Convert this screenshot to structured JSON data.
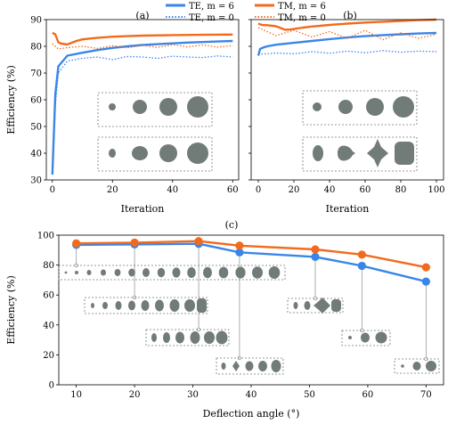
{
  "legend": [
    {
      "label": "TE, m = 6",
      "color": "#3a86e8",
      "style": "solid"
    },
    {
      "label": "TE, m = 0",
      "color": "#3a86e8",
      "style": "dotted"
    },
    {
      "label": "TM, m = 6",
      "color": "#f26b1d",
      "style": "solid"
    },
    {
      "label": "TM, m = 0",
      "color": "#f26b1d",
      "style": "dotted"
    }
  ],
  "colors": {
    "te": "#3a86e8",
    "tm": "#f26b1d",
    "shape": "#717c78"
  },
  "chart_data": [
    {
      "panel": "(a)",
      "type": "line",
      "xlabel": "Iteration",
      "ylabel": "Efficiency (%)",
      "xlim": [
        -2,
        62
      ],
      "ylim": [
        30,
        90
      ],
      "xticks": [
        0,
        20,
        40,
        60
      ],
      "yticks": [
        30,
        40,
        50,
        60,
        70,
        80,
        90
      ],
      "series": [
        {
          "name": "TE, m = 6",
          "x": [
            0,
            1,
            2,
            5,
            10,
            15,
            20,
            25,
            30,
            35,
            40,
            45,
            50,
            55,
            60
          ],
          "values": [
            32,
            62,
            72.5,
            76.5,
            77.6,
            78.6,
            79.4,
            80.0,
            80.5,
            80.8,
            81.1,
            81.4,
            81.6,
            81.8,
            82.0
          ]
        },
        {
          "name": "TE, m = 0",
          "x": [
            0,
            1,
            2,
            5,
            10,
            15,
            20,
            25,
            30,
            35,
            40,
            45,
            50,
            55,
            60
          ],
          "values": [
            33,
            58,
            70,
            74.5,
            75.5,
            76,
            75,
            76.2,
            76,
            75.5,
            76.3,
            76,
            75.8,
            76.4,
            76
          ]
        },
        {
          "name": "TM, m = 6",
          "x": [
            0,
            1,
            2,
            3,
            5,
            8,
            10,
            15,
            20,
            25,
            30,
            40,
            50,
            60
          ],
          "values": [
            85,
            84.5,
            81.5,
            81,
            80.7,
            82,
            82.6,
            83.2,
            83.6,
            83.8,
            84.0,
            84.2,
            84.3,
            84.4
          ]
        },
        {
          "name": "TM, m = 0",
          "x": [
            0,
            2,
            5,
            10,
            15,
            20,
            25,
            30,
            35,
            40,
            45,
            50,
            55,
            60
          ],
          "values": [
            81,
            79,
            79.5,
            80,
            79.2,
            80.2,
            79.5,
            80.4,
            79.6,
            80.6,
            79.8,
            80.5,
            79.7,
            80.3
          ]
        }
      ]
    },
    {
      "panel": "(b)",
      "type": "line",
      "xlabel": "Iteration",
      "ylabel": "",
      "xlim": [
        -4,
        104
      ],
      "ylim": [
        30,
        90
      ],
      "xticks": [
        0,
        20,
        40,
        60,
        80,
        100
      ],
      "yticks": [
        30,
        40,
        50,
        60,
        70,
        80,
        90
      ],
      "series": [
        {
          "name": "TE, m = 6",
          "x": [
            0,
            1,
            3,
            5,
            10,
            20,
            30,
            40,
            50,
            60,
            70,
            80,
            90,
            100
          ],
          "values": [
            76.5,
            79,
            79.6,
            80,
            80.6,
            81.3,
            82,
            82.7,
            83.3,
            83.8,
            84.2,
            84.5,
            84.8,
            85
          ]
        },
        {
          "name": "TE, m = 0",
          "x": [
            0,
            10,
            20,
            30,
            40,
            50,
            60,
            70,
            80,
            90,
            100
          ],
          "values": [
            77,
            77.5,
            77.2,
            78,
            77.4,
            78.2,
            77.6,
            78.4,
            77.8,
            78.2,
            78
          ]
        },
        {
          "name": "TM, m = 6",
          "x": [
            0,
            2,
            5,
            10,
            15,
            18,
            20,
            25,
            30,
            40,
            50,
            60,
            70,
            80,
            90,
            100
          ],
          "values": [
            88.5,
            88,
            87.9,
            87.5,
            86.2,
            86.3,
            86.5,
            87,
            87.4,
            88,
            88.5,
            88.9,
            89.2,
            89.5,
            89.8,
            90
          ]
        },
        {
          "name": "TM, m = 0",
          "x": [
            0,
            10,
            20,
            30,
            40,
            50,
            60,
            70,
            80,
            90,
            100
          ],
          "values": [
            87,
            84,
            86,
            83.5,
            85.5,
            83,
            86,
            82.5,
            85,
            83,
            84.5
          ]
        }
      ]
    },
    {
      "panel": "(c)",
      "type": "line",
      "xlabel": "Deflection angle (°)",
      "ylabel": "Efficiency (%)",
      "xlim": [
        7,
        73
      ],
      "ylim": [
        0,
        100
      ],
      "xticks": [
        10,
        20,
        30,
        40,
        50,
        60,
        70
      ],
      "yticks": [
        0,
        20,
        40,
        60,
        80,
        100
      ],
      "series": [
        {
          "name": "TE",
          "x": [
            10,
            20,
            31,
            38,
            51,
            59,
            70
          ],
          "values": [
            93.5,
            93.8,
            94.2,
            88.5,
            85.5,
            79.5,
            69
          ]
        },
        {
          "name": "TM",
          "x": [
            10,
            20,
            31,
            38,
            51,
            59,
            70
          ],
          "values": [
            94.5,
            95,
            96,
            93,
            90.5,
            87,
            78.5
          ]
        }
      ]
    }
  ]
}
